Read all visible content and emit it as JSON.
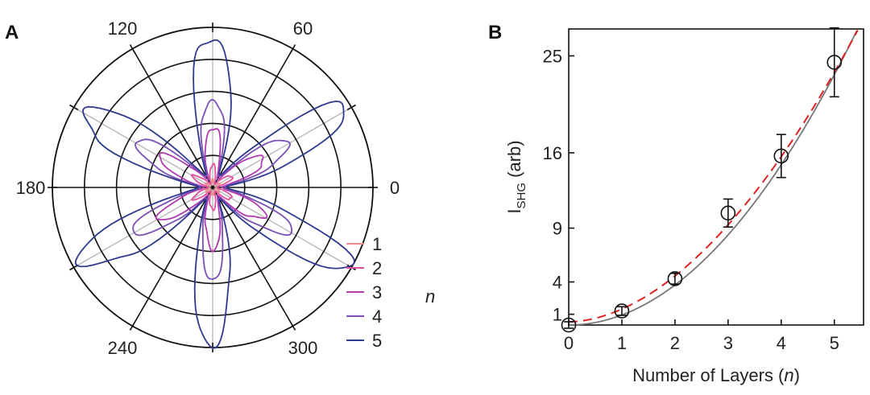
{
  "chart_data": [
    {
      "panel": "A",
      "type": "polar-line",
      "angle_ticks": [
        "0",
        "60",
        "120",
        "180",
        "240",
        "300"
      ],
      "legend": {
        "title": "n",
        "entries": [
          "1",
          "2",
          "3",
          "4",
          "5"
        ]
      },
      "colors": [
        "#f08a8f",
        "#e0509c",
        "#b03bb0",
        "#7a4fb6",
        "#2e3a8f"
      ],
      "series": [
        {
          "name": "1",
          "amplitude": 0.05,
          "minimum": 0.02
        },
        {
          "name": "2",
          "amplitude": 0.14,
          "minimum": 0.03
        },
        {
          "name": "3",
          "amplitude": 0.38,
          "minimum": 0.06
        },
        {
          "name": "4",
          "amplitude": 0.56,
          "minimum": 0.08
        },
        {
          "name": "5",
          "amplitude": 0.96,
          "minimum": 0.09
        }
      ],
      "petal_angles_deg": [
        30,
        90,
        150,
        210,
        270,
        330
      ]
    },
    {
      "panel": "B",
      "type": "scatter",
      "xlabel": "Number of Layers (n)",
      "ylabel": "I_SHG (arb)",
      "xlim": [
        0,
        5.55
      ],
      "ylim": [
        0,
        27.5
      ],
      "xticks": [
        "0",
        "1",
        "2",
        "3",
        "4",
        "5"
      ],
      "yticks": [
        "1",
        "4",
        "9",
        "16",
        "25"
      ],
      "ytick_values": [
        1,
        4,
        9,
        16,
        25
      ],
      "points": [
        {
          "x": 0,
          "y": 0.0,
          "err": 0.3
        },
        {
          "x": 1,
          "y": 1.3,
          "err": 0.4
        },
        {
          "x": 2,
          "y": 4.3,
          "err": 0.5
        },
        {
          "x": 3,
          "y": 10.4,
          "err": 1.3
        },
        {
          "x": 4,
          "y": 15.7,
          "err": 2.0
        },
        {
          "x": 5,
          "y": 24.4,
          "err": 3.2
        }
      ],
      "fit_solid": {
        "color": "#777777",
        "coefficient": 0.93,
        "exponent": 2
      },
      "fit_dashed": {
        "color": "#dd2222",
        "coefficient": 1.18,
        "exponent": 1.85,
        "offset": 0.3
      }
    }
  ]
}
